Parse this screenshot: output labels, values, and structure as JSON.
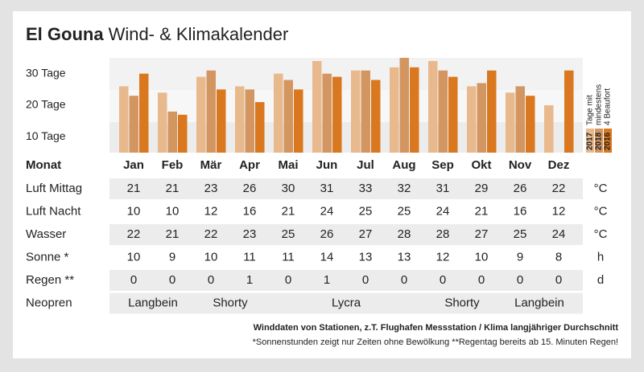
{
  "title_bold": "El Gouna",
  "title": "Wind- & Klimakalender",
  "chart_data": {
    "type": "bar",
    "categories": [
      "Jan",
      "Feb",
      "Mär",
      "Apr",
      "Mai",
      "Jun",
      "Jul",
      "Aug",
      "Sep",
      "Okt",
      "Nov",
      "Dez"
    ],
    "series": [
      {
        "name": "2017",
        "color": "#e8b98c",
        "values": [
          26,
          24,
          29,
          26,
          30,
          34,
          31,
          32,
          34,
          26,
          24,
          20
        ]
      },
      {
        "name": "2018",
        "color": "#d49660",
        "values": [
          23,
          18,
          31,
          25,
          28,
          30,
          31,
          35,
          31,
          27,
          26,
          null
        ]
      },
      {
        "name": "2016",
        "color": "#d9781e",
        "values": [
          30,
          17,
          25,
          21,
          25,
          29,
          28,
          32,
          29,
          31,
          23,
          31
        ]
      }
    ],
    "ylim": [
      5,
      35
    ],
    "yticks": [
      {
        "value": 10,
        "label": "10 Tage"
      },
      {
        "value": 20,
        "label": "20 Tage"
      },
      {
        "value": 30,
        "label": "30 Tage"
      }
    ],
    "legend_title": [
      "Tage mit",
      "mindestens",
      "4 Beaufort"
    ]
  },
  "table": {
    "header": "Monat",
    "rows": [
      {
        "label": "Luft Mittag",
        "values": [
          21,
          21,
          23,
          26,
          30,
          31,
          33,
          32,
          31,
          29,
          26,
          22
        ],
        "unit": "°C"
      },
      {
        "label": "Luft Nacht",
        "values": [
          10,
          10,
          12,
          16,
          21,
          24,
          25,
          25,
          24,
          21,
          16,
          12
        ],
        "unit": "°C"
      },
      {
        "label": "Wasser",
        "values": [
          22,
          21,
          22,
          23,
          25,
          26,
          27,
          28,
          28,
          27,
          25,
          24
        ],
        "unit": "°C"
      },
      {
        "label": "Sonne *",
        "values": [
          10,
          9,
          10,
          11,
          11,
          14,
          13,
          13,
          12,
          10,
          9,
          8
        ],
        "unit": "h"
      },
      {
        "label": "Regen **",
        "values": [
          0,
          0,
          0,
          1,
          0,
          1,
          0,
          0,
          0,
          0,
          0,
          0
        ],
        "unit": "d"
      }
    ],
    "neopren": {
      "label": "Neopren",
      "values": [
        "Langbein",
        "Langbein",
        "Shorty",
        "Shorty",
        "Lycra",
        "Lycra",
        "Lycra",
        "Lycra",
        "Shorty",
        "Shorty",
        "Langbein",
        "Langbein"
      ]
    }
  },
  "footer": {
    "source": "Winddaten von Stationen, z.T. Flughafen Messstation / Klima langjähriger Durchschnitt",
    "note": "*Sonnenstunden zeigt nur Zeiten ohne Bewölkung  **Regentag bereits ab 15. Minuten Regen!"
  }
}
